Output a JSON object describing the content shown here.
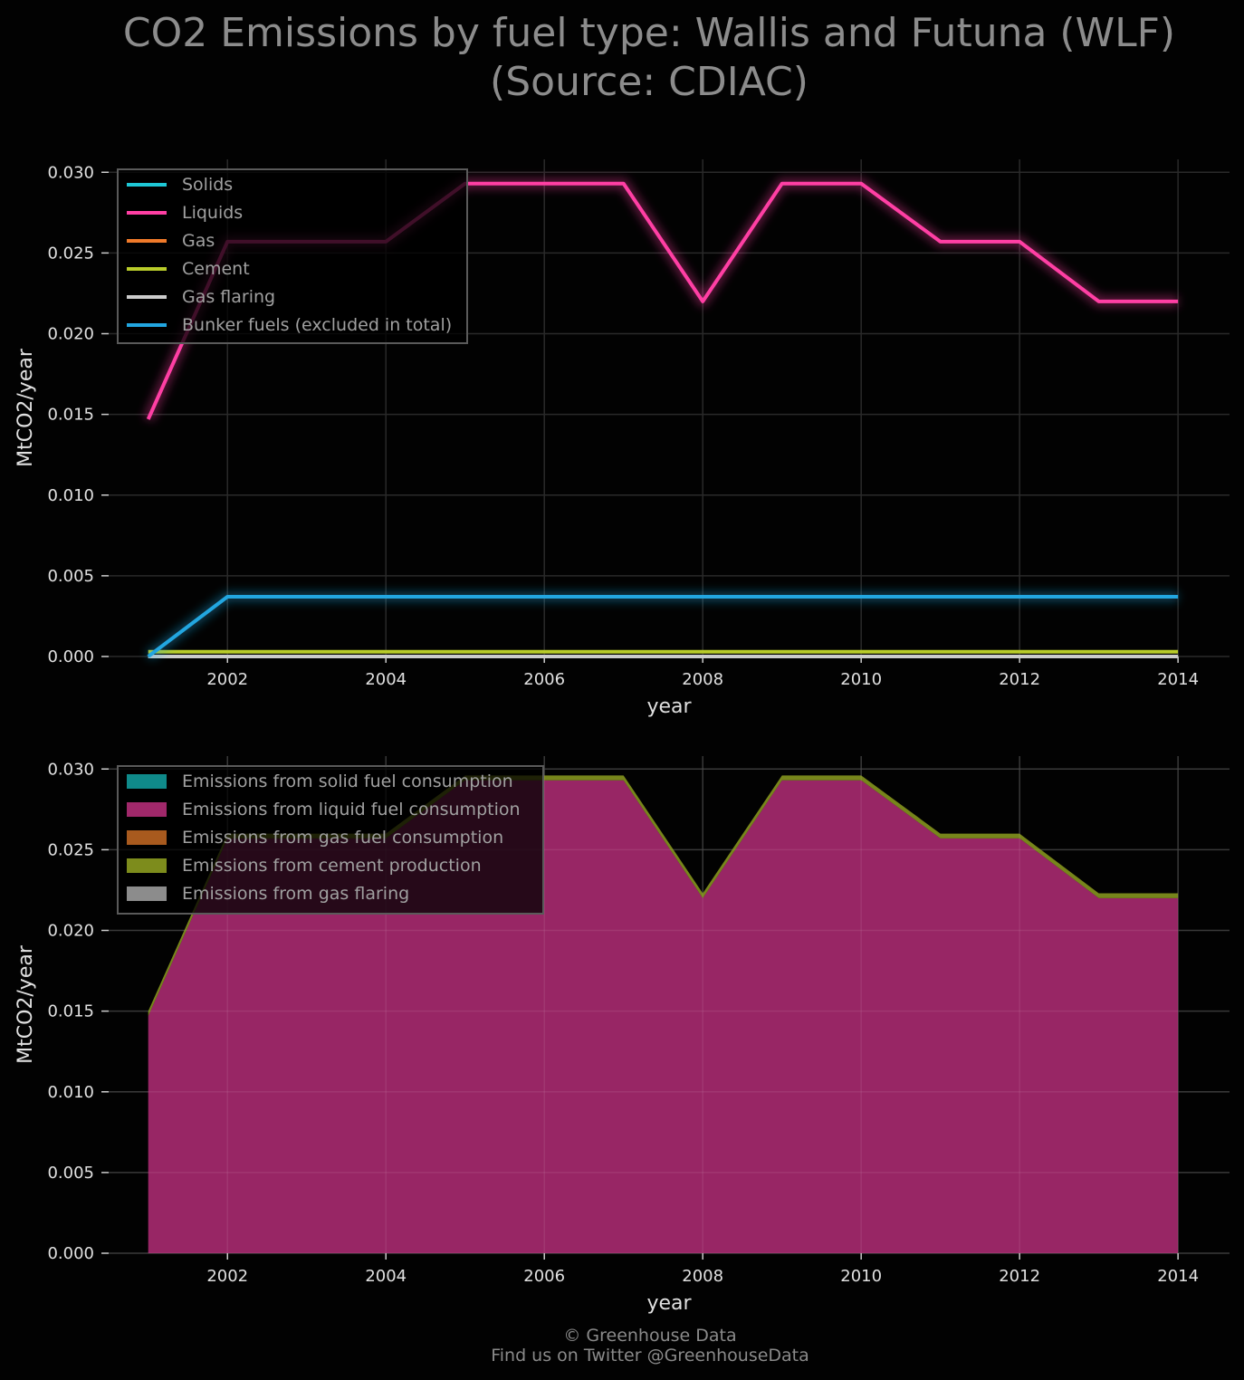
{
  "title": {
    "line1": "CO2 Emissions by fuel type: Wallis and Futuna (WLF)",
    "line2": "(Source: CDIAC)"
  },
  "footer": {
    "line1": "© Greenhouse Data",
    "line2": "Find us on Twitter @GreenhouseData"
  },
  "chart_data": [
    {
      "type": "line",
      "xlabel": "year",
      "ylabel": "MtCO2/year",
      "xlim": [
        2000.5,
        2014.65
      ],
      "ylim": [
        0.0,
        0.0308
      ],
      "xticks": [
        2002,
        2004,
        2006,
        2008,
        2010,
        2012,
        2014
      ],
      "xtick_labels": [
        "2002",
        "2004",
        "2006",
        "2008",
        "2010",
        "2012",
        "2014"
      ],
      "yticks": [
        0.0,
        0.005,
        0.01,
        0.015,
        0.02,
        0.025,
        0.03
      ],
      "ytick_labels": [
        "0.000",
        "0.005",
        "0.010",
        "0.015",
        "0.020",
        "0.025",
        "0.030"
      ],
      "grid": true,
      "legend_position": "top-left",
      "x": [
        2001,
        2002,
        2003,
        2004,
        2005,
        2006,
        2007,
        2008,
        2009,
        2010,
        2011,
        2012,
        2013,
        2014
      ],
      "series": [
        {
          "name": "Solids",
          "color": "#1ec8d6",
          "values": [
            0,
            0,
            0,
            0,
            0,
            0,
            0,
            0,
            0,
            0,
            0,
            0,
            0,
            0
          ]
        },
        {
          "name": "Liquids",
          "color": "#ff3fa4",
          "values": [
            0.0147,
            0.0257,
            0.0257,
            0.0257,
            0.0293,
            0.0293,
            0.0293,
            0.022,
            0.0293,
            0.0293,
            0.0257,
            0.0257,
            0.022,
            0.022
          ]
        },
        {
          "name": "Gas",
          "color": "#f07a2a",
          "values": [
            0,
            0,
            0,
            0,
            0,
            0,
            0,
            0,
            0,
            0,
            0,
            0,
            0,
            0
          ]
        },
        {
          "name": "Cement",
          "color": "#b9cc2a",
          "values": [
            0.0003,
            0.0003,
            0.0003,
            0.0003,
            0.0003,
            0.0003,
            0.0003,
            0.0003,
            0.0003,
            0.0003,
            0.0003,
            0.0003,
            0.0003,
            0.0003
          ]
        },
        {
          "name": "Gas flaring",
          "color": "#cccccc",
          "values": [
            0,
            0,
            0,
            0,
            0,
            0,
            0,
            0,
            0,
            0,
            0,
            0,
            0,
            0
          ]
        },
        {
          "name": "Bunker fuels (excluded in total)",
          "color": "#22a6e0",
          "values": [
            0.0,
            0.0037,
            0.0037,
            0.0037,
            0.0037,
            0.0037,
            0.0037,
            0.0037,
            0.0037,
            0.0037,
            0.0037,
            0.0037,
            0.0037,
            0.0037
          ]
        }
      ]
    },
    {
      "type": "area",
      "stacked": true,
      "xlabel": "year",
      "ylabel": "MtCO2/year",
      "xlim": [
        2000.5,
        2014.65
      ],
      "ylim": [
        0.0,
        0.0308
      ],
      "xticks": [
        2002,
        2004,
        2006,
        2008,
        2010,
        2012,
        2014
      ],
      "xtick_labels": [
        "2002",
        "2004",
        "2006",
        "2008",
        "2010",
        "2012",
        "2014"
      ],
      "yticks": [
        0.0,
        0.005,
        0.01,
        0.015,
        0.02,
        0.025,
        0.03
      ],
      "ytick_labels": [
        "0.000",
        "0.005",
        "0.010",
        "0.015",
        "0.020",
        "0.025",
        "0.030"
      ],
      "grid": true,
      "legend_position": "top-left",
      "x": [
        2001,
        2002,
        2003,
        2004,
        2005,
        2006,
        2007,
        2008,
        2009,
        2010,
        2011,
        2012,
        2013,
        2014
      ],
      "series": [
        {
          "name": "Emissions from solid fuel consumption",
          "color": "#0f8a8a",
          "values": [
            0,
            0,
            0,
            0,
            0,
            0,
            0,
            0,
            0,
            0,
            0,
            0,
            0,
            0
          ]
        },
        {
          "name": "Emissions from liquid fuel consumption",
          "color": "#a0286a",
          "values": [
            0.0147,
            0.0257,
            0.0257,
            0.0257,
            0.0293,
            0.0293,
            0.0293,
            0.022,
            0.0293,
            0.0293,
            0.0257,
            0.0257,
            0.022,
            0.022
          ]
        },
        {
          "name": "Emissions from gas fuel consumption",
          "color": "#a85a1e",
          "values": [
            0,
            0,
            0,
            0,
            0,
            0,
            0,
            0,
            0,
            0,
            0,
            0,
            0,
            0
          ]
        },
        {
          "name": "Emissions from cement production",
          "color": "#7d8c1c",
          "values": [
            0.0003,
            0.0003,
            0.0003,
            0.0003,
            0.0003,
            0.0003,
            0.0003,
            0.0003,
            0.0003,
            0.0003,
            0.0003,
            0.0003,
            0.0003,
            0.0003
          ]
        },
        {
          "name": "Emissions from gas flaring",
          "color": "#8c8c8c",
          "values": [
            0,
            0,
            0,
            0,
            0,
            0,
            0,
            0,
            0,
            0,
            0,
            0,
            0,
            0
          ]
        }
      ]
    }
  ]
}
